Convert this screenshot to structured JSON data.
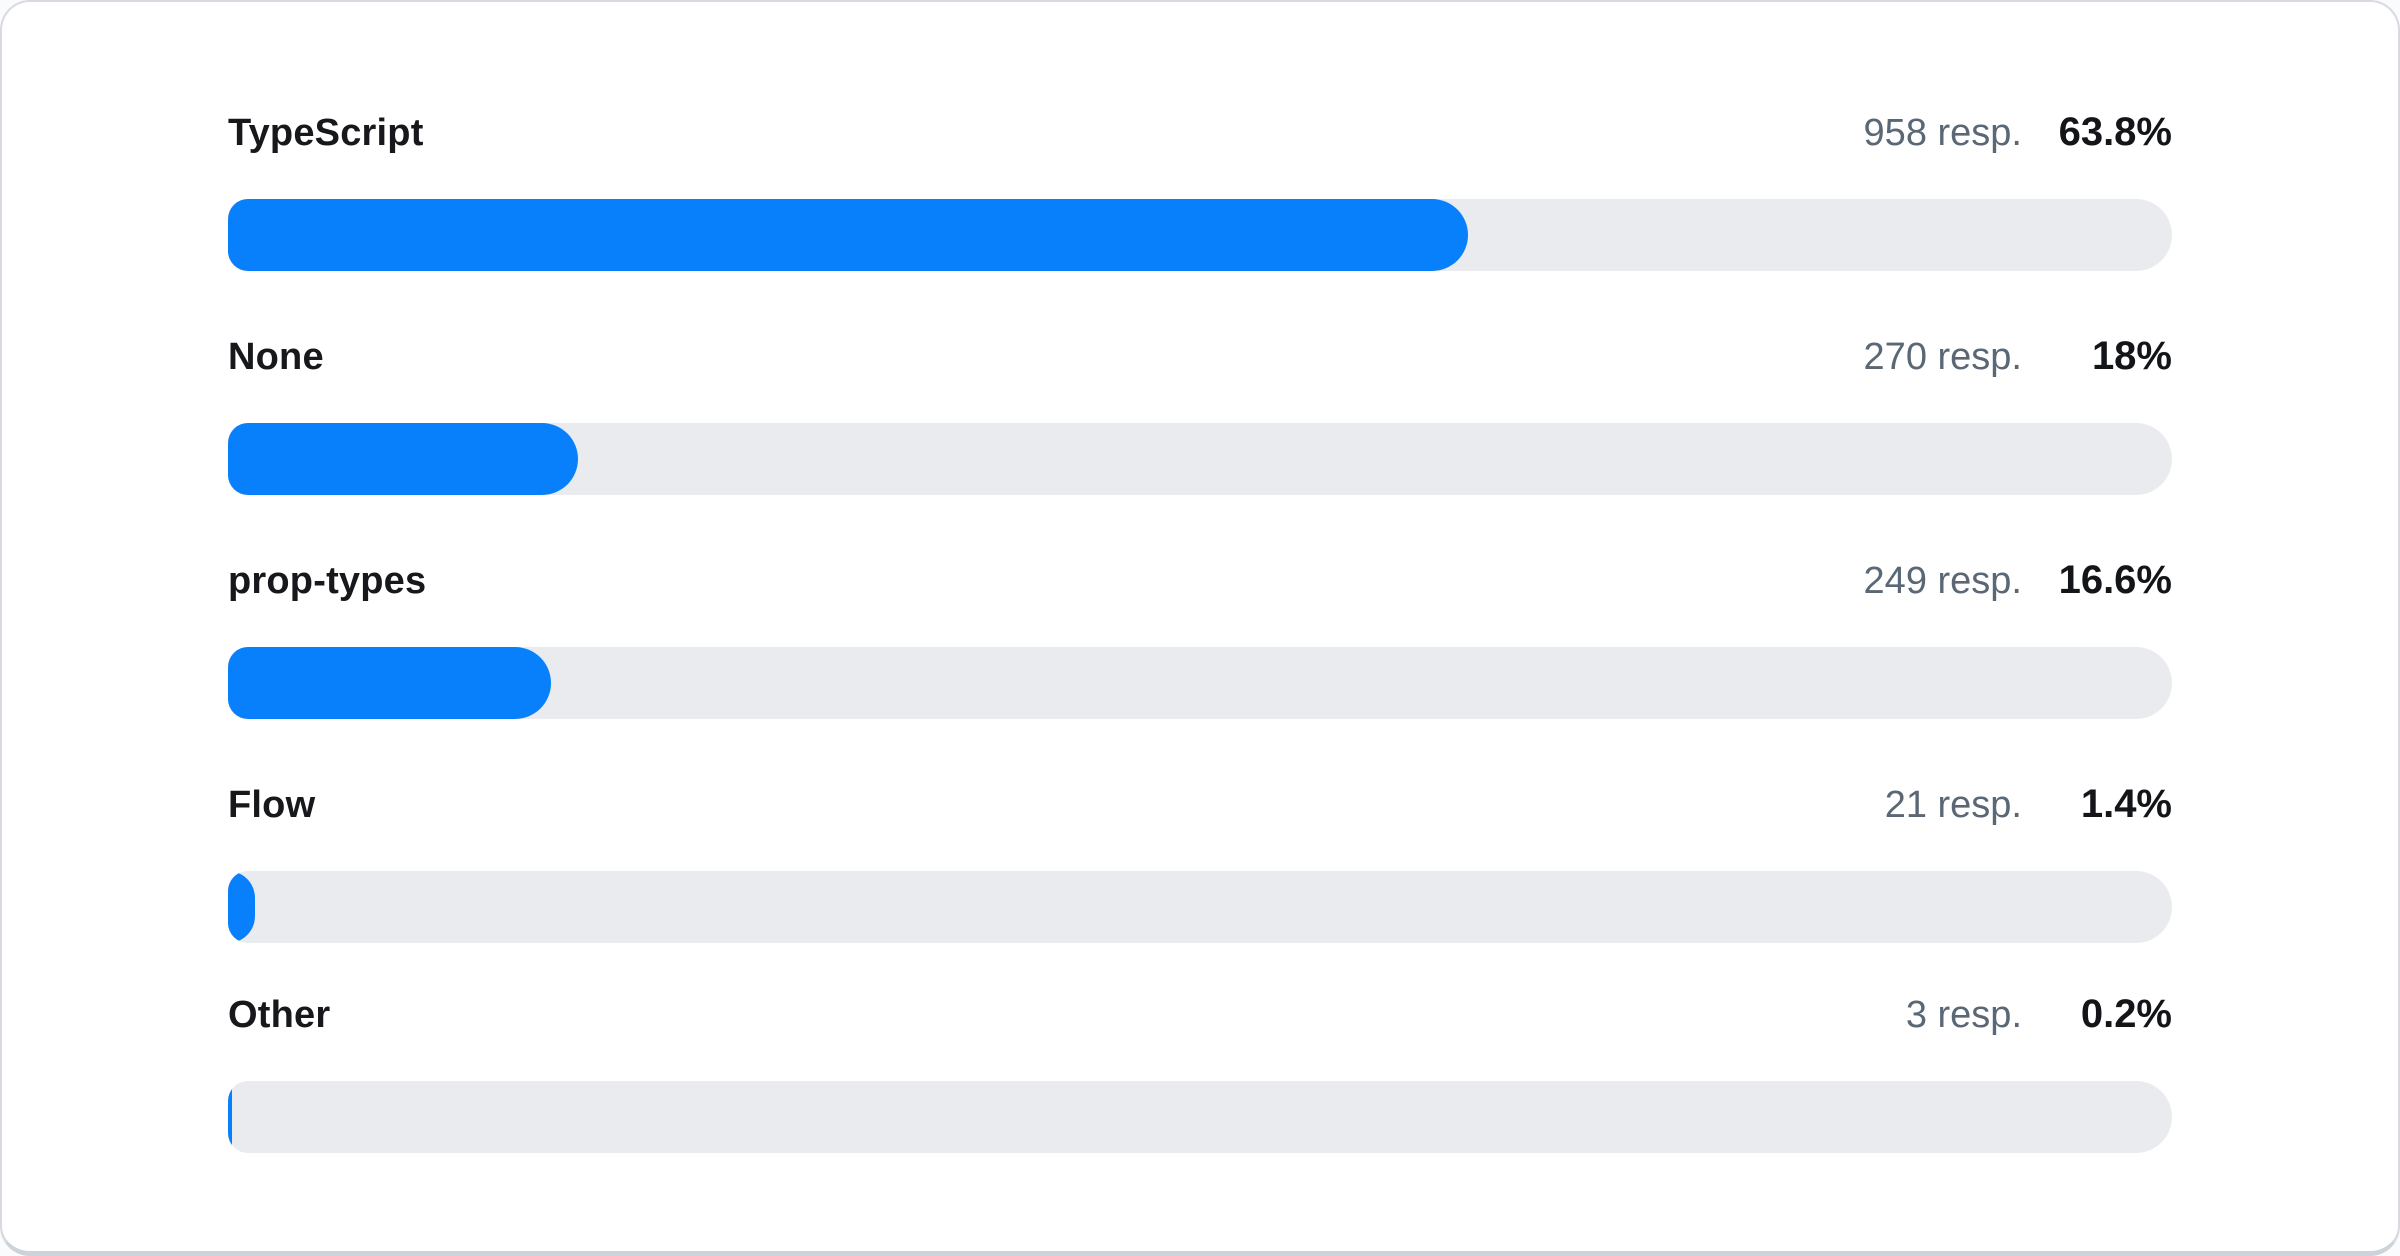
{
  "card": {
    "background": "#ffffff",
    "border_color": "#d7dbe1"
  },
  "chart_data": {
    "type": "bar",
    "orientation": "horizontal",
    "title": "",
    "xlabel": "",
    "ylabel": "",
    "xlim": [
      0,
      100
    ],
    "grid": false,
    "legend": false,
    "categories": [
      "TypeScript",
      "None",
      "prop-types",
      "Flow",
      "Other"
    ],
    "values": [
      63.8,
      18,
      16.6,
      1.4,
      0.2
    ],
    "responses": [
      958,
      270,
      249,
      21,
      3
    ],
    "colors": {
      "bar_fill": "#0880fb",
      "bar_track": "#e9ebef"
    },
    "rows": [
      {
        "label": "TypeScript",
        "responses": 958,
        "responses_label": "958 resp.",
        "percent": 63.8,
        "percent_label": "63.8%"
      },
      {
        "label": "None",
        "responses": 270,
        "responses_label": "270 resp.",
        "percent": 18,
        "percent_label": "18%"
      },
      {
        "label": "prop-types",
        "responses": 249,
        "responses_label": "249 resp.",
        "percent": 16.6,
        "percent_label": "16.6%"
      },
      {
        "label": "Flow",
        "responses": 21,
        "responses_label": "21 resp.",
        "percent": 1.4,
        "percent_label": "1.4%"
      },
      {
        "label": "Other",
        "responses": 3,
        "responses_label": "3 resp.",
        "percent": 0.2,
        "percent_label": "0.2%"
      }
    ]
  }
}
